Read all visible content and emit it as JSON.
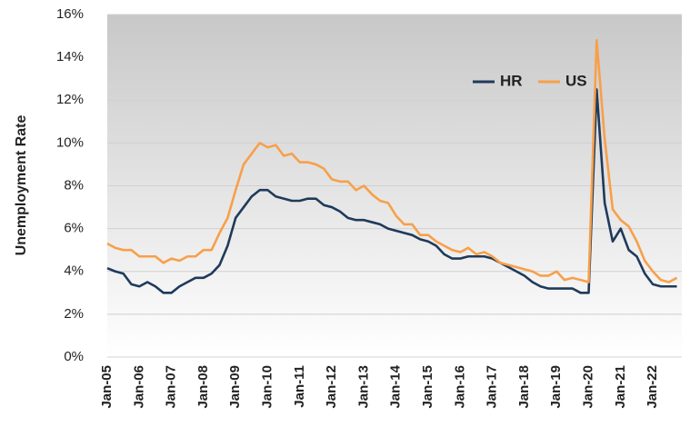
{
  "chart_data": {
    "type": "line",
    "y_label": "Unemployment Rate",
    "categories": [
      "Jan-05",
      null,
      null,
      null,
      "Jan-06",
      null,
      null,
      null,
      "Jan-07",
      null,
      null,
      null,
      "Jan-08",
      null,
      null,
      null,
      "Jan-09",
      null,
      null,
      null,
      "Jan-10",
      null,
      null,
      null,
      "Jan-11",
      null,
      null,
      null,
      "Jan-12",
      null,
      null,
      null,
      "Jan-13",
      null,
      null,
      null,
      "Jan-14",
      null,
      null,
      null,
      "Jan-15",
      null,
      null,
      null,
      "Jan-16",
      null,
      null,
      null,
      "Jan-17",
      null,
      null,
      null,
      "Jan-18",
      null,
      null,
      null,
      "Jan-19",
      null,
      null,
      null,
      "Jan-20",
      null,
      null,
      null,
      "Jan-21",
      null,
      null,
      null,
      "Jan-22",
      null,
      null,
      null
    ],
    "series": [
      {
        "name": "HR",
        "color": "#1f3a5a",
        "values": [
          4.15,
          4.0,
          3.9,
          3.4,
          3.3,
          3.5,
          3.3,
          3.0,
          3.0,
          3.3,
          3.5,
          3.7,
          3.7,
          3.9,
          4.3,
          5.2,
          6.5,
          7.0,
          7.5,
          7.8,
          7.8,
          7.5,
          7.4,
          7.3,
          7.3,
          7.4,
          7.4,
          7.1,
          7.0,
          6.8,
          6.5,
          6.4,
          6.4,
          6.3,
          6.2,
          6.0,
          5.9,
          5.8,
          5.7,
          5.5,
          5.4,
          5.2,
          4.8,
          4.6,
          4.6,
          4.7,
          4.7,
          4.7,
          4.6,
          4.4,
          4.2,
          4.0,
          3.8,
          3.5,
          3.3,
          3.2,
          3.2,
          3.2,
          3.2,
          3.0,
          3.0,
          12.5,
          7.2,
          5.4,
          6.0,
          5.0,
          4.7,
          3.9,
          3.4,
          3.3,
          3.3,
          3.3
        ]
      },
      {
        "name": "US",
        "color": "#f7a04a",
        "values": [
          5.3,
          5.1,
          5.0,
          5.0,
          4.7,
          4.7,
          4.7,
          4.4,
          4.6,
          4.5,
          4.7,
          4.7,
          5.0,
          5.0,
          5.8,
          6.5,
          7.8,
          9.0,
          9.5,
          10.0,
          9.8,
          9.9,
          9.4,
          9.5,
          9.1,
          9.1,
          9.0,
          8.8,
          8.3,
          8.2,
          8.2,
          7.8,
          8.0,
          7.6,
          7.3,
          7.2,
          6.6,
          6.2,
          6.2,
          5.7,
          5.7,
          5.4,
          5.2,
          5.0,
          4.9,
          5.1,
          4.8,
          4.9,
          4.7,
          4.4,
          4.3,
          4.2,
          4.1,
          4.0,
          3.8,
          3.8,
          4.0,
          3.6,
          3.7,
          3.6,
          3.5,
          14.8,
          10.2,
          6.9,
          6.4,
          6.1,
          5.4,
          4.5,
          4.0,
          3.6,
          3.5,
          3.7
        ]
      }
    ],
    "ylim": [
      0,
      16
    ],
    "yticks": [
      {
        "value": 0,
        "label": "0%"
      },
      {
        "value": 2,
        "label": "2%"
      },
      {
        "value": 4,
        "label": "4%"
      },
      {
        "value": 6,
        "label": "6%"
      },
      {
        "value": 8,
        "label": "8%"
      },
      {
        "value": 10,
        "label": "10%"
      },
      {
        "value": 12,
        "label": "12%"
      },
      {
        "value": 14,
        "label": "14%"
      },
      {
        "value": 16,
        "label": "16%"
      }
    ],
    "grid": true,
    "legend": "upper right"
  }
}
